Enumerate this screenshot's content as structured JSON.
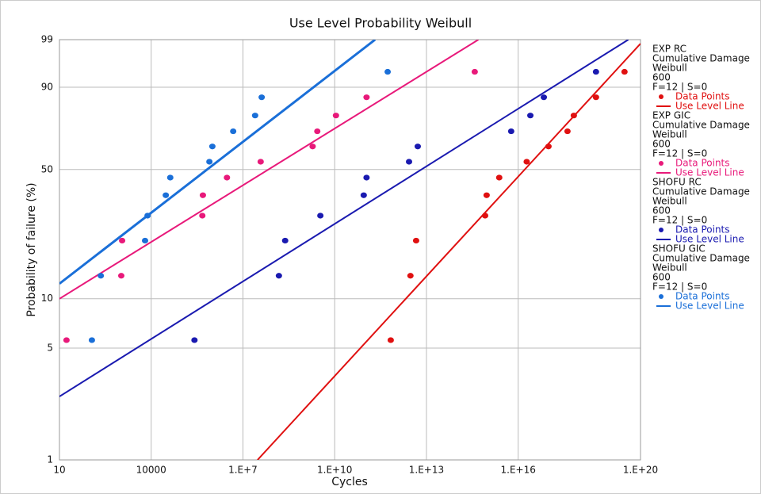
{
  "chart_data": {
    "type": "scatter",
    "title": "Use Level Probability Weibull",
    "xlabel": "Cycles",
    "ylabel": "Probability of failure (%)",
    "xscale": "log",
    "yscale": "weibull",
    "grid": true,
    "legend": "right",
    "xlim": [
      10,
      1e+20
    ],
    "ylim": [
      1,
      99
    ],
    "xticks": [
      10,
      10000,
      {
        "value": 10000000.0,
        "label": "1.E+7"
      },
      {
        "value": 10000000000.0,
        "label": "1.E+10"
      },
      {
        "value": 10000000000000.0,
        "label": "1.E+13"
      },
      {
        "value": 1e+16,
        "label": "1.E+16"
      },
      {
        "value": 1e+20,
        "label": "1.E+20"
      }
    ],
    "yticks": [
      1,
      5,
      10,
      50,
      90,
      99
    ],
    "y": [
      5.6,
      13.7,
      21.8,
      29.8,
      37.9,
      46.0,
      54.0,
      62.1,
      70.2,
      78.2,
      86.3,
      94.4
    ],
    "series": [
      {
        "name": "EXP RC",
        "info": [
          "Cumulative Damage",
          "Weibull",
          "600",
          "F=12 | S=0"
        ],
        "points_label": "Data Points",
        "line_label": "Use Level Line",
        "color": "#e01010",
        "x": [
          680000000000.0,
          3000000000000.0,
          4600000000000.0,
          830000000000000.0,
          930000000000000.0,
          2400000000000000.0,
          1.9e+16,
          9.8e+16,
          4.1e+17,
          6.6e+17,
          3.5e+18,
          3e+19
        ],
        "line": {
          "x": [
            30000000.0,
            1e+20
          ],
          "y": [
            1,
            98.7
          ]
        }
      },
      {
        "name": "EXP GIC",
        "info": [
          "Cumulative Damage",
          "Weibull",
          "600",
          "F=12 | S=0"
        ],
        "points_label": "Data Points",
        "line_label": "Use Level Line",
        "color": "#e8197a",
        "x": [
          17,
          1050,
          1120,
          470000.0,
          490000.0,
          3000000.0,
          38000000.0,
          1900000000.0,
          2700000000.0,
          11000000000.0,
          110000000000.0,
          380000000000000.0
        ],
        "line": {
          "x": [
            10,
            500000000000000.0
          ],
          "y": [
            10,
            99
          ]
        }
      },
      {
        "name": "SHOFU RC",
        "info": [
          "Cumulative Damage",
          "Weibull",
          "600",
          "F=12 | S=0"
        ],
        "points_label": "Data Points",
        "line_label": "Use Level Line",
        "color": "#1a1ab0",
        "x": [
          260000.0,
          150000000.0,
          240000000.0,
          3400000000.0,
          89000000000.0,
          110000000000.0,
          2700000000000.0,
          5200000000000.0,
          5900000000000000.0,
          2.5e+16,
          6.9e+16,
          3.5e+18
        ],
        "line": {
          "x": [
            10,
            4e+19
          ],
          "y": [
            2.5,
            99
          ]
        }
      },
      {
        "name": "SHOFU GIC",
        "info": [
          "Cumulative Damage",
          "Weibull",
          "600",
          "F=12 | S=0"
        ],
        "points_label": "Data Points",
        "line_label": "Use Level Line",
        "color": "#1a6fd8",
        "x": [
          115,
          225,
          6300,
          7600,
          30000.0,
          42000.0,
          800000.0,
          1000000.0,
          4800000.0,
          25000000.0,
          41000000.0,
          540000000000.0
        ],
        "line": {
          "x": [
            10,
            210000000000.0
          ],
          "y": [
            12.3,
            99
          ]
        }
      }
    ]
  }
}
